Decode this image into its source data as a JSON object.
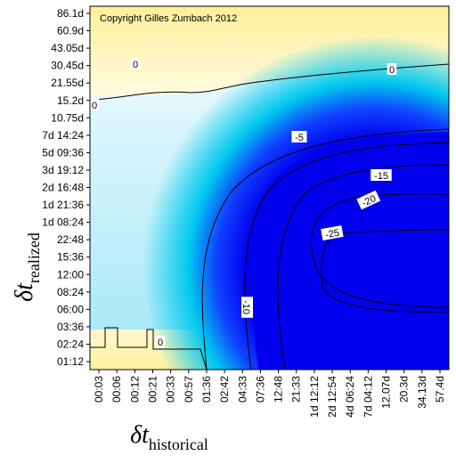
{
  "chart_data": {
    "type": "heatmap",
    "title": "",
    "copyright": "Copyright Gilles Zumbach 2012",
    "xlabel": {
      "symbol": "δt",
      "subscript": "historical"
    },
    "ylabel": {
      "symbol": "δt",
      "subscript": "realized"
    },
    "x_ticks": [
      "00:03",
      "00:06",
      "00:12",
      "00:21",
      "00:33",
      "00:57",
      "01:36",
      "02:42",
      "04:33",
      "07:36",
      "12:48",
      "21:33",
      "1d 12:12",
      "2d 12:54",
      "4d 06:24",
      "7d 04:12",
      "12.07d",
      "20.3d",
      "34.13d",
      "57.4d"
    ],
    "y_ticks": [
      "01:12",
      "02:24",
      "03:36",
      "06:00",
      "08:24",
      "12:00",
      "15:36",
      "22:48",
      "1d 08:24",
      "1d 21:36",
      "2d 16:48",
      "3d 19:12",
      "5d 09:36",
      "7d 14:24",
      "10.75d",
      "15.2d",
      "21.55d",
      "30.45d",
      "43.05d",
      "60.9d",
      "86.1d"
    ],
    "contours": [
      {
        "level": 0,
        "label": "0"
      },
      {
        "level": -5,
        "label": "-5"
      },
      {
        "level": -10,
        "label": "-10"
      },
      {
        "level": -15,
        "label": "-15"
      },
      {
        "level": -20,
        "label": "-20"
      },
      {
        "level": -25,
        "label": "-25"
      }
    ],
    "colors": {
      "high": "#fff4a0",
      "zero": "#ffffff",
      "mid": "#00ccee",
      "low": "#0000ee"
    },
    "grid": false,
    "legend": "none"
  }
}
